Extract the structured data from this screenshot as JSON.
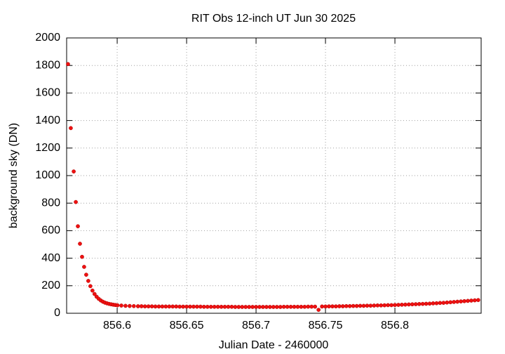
{
  "chart_data": {
    "type": "scatter",
    "title": "RIT Obs 12-inch UT Jun 30 2025",
    "xlabel": "Julian Date - 2460000",
    "ylabel": "background sky (DN)",
    "xlim": [
      856.5636,
      856.8621
    ],
    "ylim": [
      0,
      2000
    ],
    "xticks": [
      856.6,
      856.65,
      856.7,
      856.75,
      856.8
    ],
    "yticks": [
      0,
      200,
      400,
      600,
      800,
      1000,
      1200,
      1400,
      1600,
      1800,
      2000
    ],
    "grid": true,
    "color": "#ee1111",
    "x": [
      856.5646,
      856.5666,
      856.5687,
      856.5702,
      856.5717,
      856.5732,
      856.5747,
      856.5762,
      856.5777,
      856.5792,
      856.5807,
      856.5822,
      856.5837,
      856.5852,
      856.5867,
      856.5882,
      856.5897,
      856.5912,
      856.5927,
      856.5942,
      856.5957,
      856.5972,
      856.5987,
      856.6002,
      856.603,
      856.606,
      856.609,
      856.612,
      856.615,
      856.6175,
      856.62,
      856.6225,
      856.625,
      856.6275,
      856.63,
      856.6325,
      856.635,
      856.6375,
      856.64,
      856.6425,
      856.645,
      856.6475,
      856.65,
      856.6525,
      856.655,
      856.6575,
      856.66,
      856.6625,
      856.665,
      856.6675,
      856.67,
      856.6725,
      856.675,
      856.6775,
      856.68,
      856.6825,
      856.685,
      856.6875,
      856.69,
      856.6925,
      856.695,
      856.6975,
      856.7,
      856.7025,
      856.705,
      856.7075,
      856.71,
      856.7125,
      856.715,
      856.7175,
      856.72,
      856.7225,
      856.725,
      856.7275,
      856.73,
      856.7325,
      856.735,
      856.7375,
      856.74,
      856.7425,
      856.745,
      856.7475,
      856.75,
      856.7525,
      856.755,
      856.7575,
      856.76,
      856.7625,
      856.765,
      856.7675,
      856.77,
      856.7725,
      856.775,
      856.7775,
      856.78,
      856.7825,
      856.785,
      856.7875,
      856.79,
      856.7925,
      856.795,
      856.7975,
      856.8,
      856.8025,
      856.805,
      856.8075,
      856.81,
      856.8125,
      856.815,
      856.8175,
      856.82,
      856.8225,
      856.825,
      856.8275,
      856.83,
      856.8325,
      856.835,
      856.8375,
      856.84,
      856.8425,
      856.845,
      856.8475,
      856.85,
      856.8525,
      856.855,
      856.8575,
      856.86
    ],
    "values": [
      1810,
      1345,
      1030,
      808,
      632,
      505,
      410,
      337,
      280,
      235,
      197,
      165,
      140,
      120,
      105,
      93,
      84,
      77,
      72,
      68,
      65,
      62,
      60,
      58,
      56,
      54,
      53,
      52,
      51,
      51,
      50,
      50,
      50,
      49,
      49,
      49,
      49,
      49,
      49,
      49,
      48,
      48,
      48,
      48,
      48,
      48,
      48,
      47,
      47,
      47,
      47,
      47,
      47,
      47,
      47,
      47,
      46,
      46,
      46,
      46,
      46,
      46,
      46,
      46,
      46,
      46,
      46,
      46,
      46,
      46,
      47,
      47,
      47,
      47,
      47,
      47,
      47,
      48,
      48,
      48,
      25,
      49,
      49,
      50,
      50,
      50,
      51,
      51,
      52,
      52,
      53,
      53,
      54,
      54,
      55,
      55,
      56,
      57,
      57,
      58,
      59,
      59,
      60,
      61,
      62,
      63,
      64,
      65,
      66,
      67,
      68,
      69,
      70,
      72,
      73,
      75,
      76,
      78,
      80,
      82,
      84,
      86,
      88,
      90,
      92,
      94,
      96
    ]
  }
}
